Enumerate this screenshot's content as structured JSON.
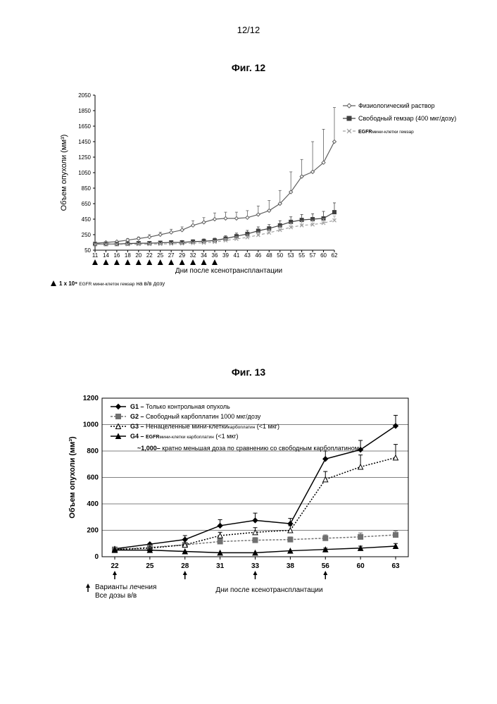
{
  "page_number": "12/12",
  "fig12": {
    "title": "Фиг. 12",
    "ylabel": "Объем опухоли (мм³)",
    "xlabel": "Дни после ксенотрансплантации",
    "x_ticks": [
      "11",
      "14",
      "16",
      "18",
      "20",
      "22",
      "25",
      "27",
      "29",
      "32",
      "34",
      "36",
      "39",
      "41",
      "43",
      "46",
      "48",
      "50",
      "53",
      "55",
      "57",
      "60",
      "62"
    ],
    "y_ticks": [
      "50",
      "250",
      "450",
      "650",
      "850",
      "1050",
      "1250",
      "1450",
      "1650",
      "1850",
      "2050"
    ],
    "ylim": [
      50,
      2050
    ],
    "series": [
      {
        "label": "Физиологический раствор",
        "color": "#606060",
        "marker": "diamond",
        "fill": "#ffffff",
        "values": [
          140,
          150,
          160,
          180,
          200,
          220,
          250,
          280,
          310,
          370,
          410,
          450,
          460,
          460,
          470,
          510,
          560,
          650,
          800,
          1000,
          1060,
          1180,
          1450
        ],
        "err": [
          0,
          0,
          0,
          20,
          20,
          30,
          30,
          40,
          40,
          60,
          60,
          80,
          80,
          80,
          90,
          110,
          130,
          170,
          260,
          220,
          390,
          430,
          440
        ]
      },
      {
        "label": "Свободный гемзар (400 мкг/дозу)",
        "color": "#404040",
        "marker": "square",
        "fill": "#404040",
        "values": [
          130,
          130,
          130,
          135,
          140,
          140,
          145,
          150,
          150,
          160,
          165,
          175,
          200,
          230,
          260,
          300,
          330,
          370,
          415,
          440,
          450,
          460,
          540
        ],
        "err": [
          0,
          0,
          0,
          0,
          0,
          0,
          20,
          20,
          25,
          25,
          30,
          30,
          35,
          40,
          45,
          50,
          50,
          60,
          65,
          70,
          70,
          90,
          120
        ]
      },
      {
        "label_pre": "EGFR",
        "label_sub": "мини-клетки гемзар",
        "color": "#a0a0a0",
        "marker": "x",
        "fill": "#a0a0a0",
        "dash": "4,3",
        "values": [
          125,
          125,
          125,
          125,
          128,
          128,
          130,
          132,
          135,
          140,
          145,
          155,
          175,
          195,
          215,
          245,
          275,
          310,
          345,
          370,
          380,
          400,
          435
        ],
        "err": [
          0,
          0,
          0,
          0,
          0,
          0,
          0,
          0,
          0,
          0,
          15,
          20,
          25,
          30,
          35,
          40,
          45,
          50,
          55,
          55,
          55,
          55,
          55
        ]
      }
    ],
    "dose_marker_indices": [
      0,
      1,
      2,
      3,
      4,
      5,
      6,
      7,
      8,
      9,
      10,
      11
    ],
    "footnote_pre": "1 x 10⁹ ",
    "footnote_sub": "EGFR мини-клеток гемзар",
    "footnote_post": " на в/в дозу"
  },
  "fig13": {
    "title": "Фиг. 13",
    "ylabel": "Объем опухоли (мм³)",
    "xlabel": "Дни после ксенотрансплантации",
    "x_ticks": [
      "22",
      "25",
      "28",
      "31",
      "33",
      "38",
      "56",
      "60",
      "63"
    ],
    "y_ticks": [
      "0",
      "200",
      "400",
      "600",
      "800",
      "1000",
      "1200"
    ],
    "ylim": [
      0,
      1200
    ],
    "series": [
      {
        "name": "G1 –",
        "label": "Только контрольная опухоль",
        "color": "#000000",
        "marker": "diamond",
        "fill": "#000000",
        "values": [
          60,
          95,
          130,
          235,
          275,
          250,
          740,
          810,
          990
        ],
        "err": [
          0,
          0,
          30,
          45,
          55,
          40,
          60,
          70,
          80
        ]
      },
      {
        "name": "G2 –",
        "label": "Свободный карбоплатин 1000 мкг/дозу",
        "color": "#707070",
        "marker": "square",
        "fill": "#707070",
        "dash": "3,2",
        "values": [
          55,
          70,
          90,
          115,
          125,
          130,
          140,
          150,
          165
        ],
        "err": [
          0,
          0,
          0,
          20,
          20,
          20,
          25,
          30,
          30
        ]
      },
      {
        "name": "G3 –",
        "label": "Ненацеленные мини-клетки",
        "sub": "карбоплатин",
        "tail": " (<1 мкг)",
        "color": "#000000",
        "marker": "triangle",
        "fill": "#ffffff",
        "dash": "2,2",
        "values": [
          55,
          65,
          90,
          160,
          185,
          200,
          585,
          680,
          750
        ],
        "err": [
          0,
          0,
          0,
          25,
          35,
          35,
          60,
          90,
          100
        ]
      },
      {
        "name": "G4 –",
        "label_pre": "EGFR",
        "sub": "мини-клетки карбоплатин",
        "tail": " (<1 мкг)",
        "color": "#000000",
        "marker": "triangle",
        "fill": "#000000",
        "values": [
          50,
          50,
          40,
          30,
          30,
          45,
          55,
          65,
          80
        ],
        "err": [
          0,
          0,
          0,
          0,
          0,
          0,
          10,
          15,
          20
        ]
      }
    ],
    "note_bold": "~1,000–",
    "note": " кратно меньшая доза по сравнению со свободным карбоплатином",
    "arrow_indices": [
      0,
      2,
      4,
      6
    ],
    "footnote1": "Варианты лечения",
    "footnote2": "Все дозы в/в"
  }
}
